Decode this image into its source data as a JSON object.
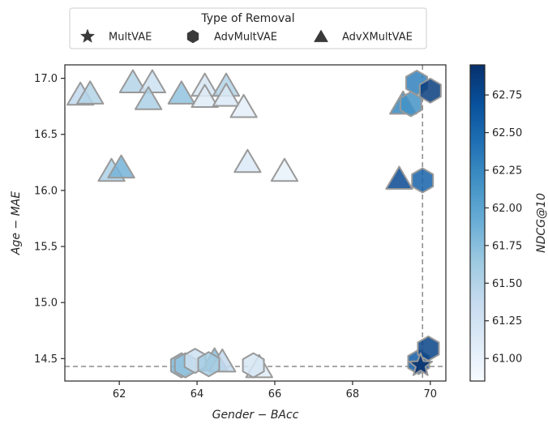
{
  "chart_data": {
    "type": "scatter",
    "xlabel": "Gender − BAcc",
    "ylabel": "Age − MAE",
    "xlim": [
      60.6,
      70.4
    ],
    "ylim": [
      14.3,
      17.12
    ],
    "xticks": [
      62,
      64,
      66,
      68,
      70
    ],
    "yticks": [
      14.5,
      15.0,
      15.5,
      16.0,
      16.5,
      17.0
    ],
    "xtick_labels": [
      "62",
      "64",
      "66",
      "68",
      "70"
    ],
    "ytick_labels": [
      "14.5",
      "15.0",
      "15.5",
      "16.0",
      "16.5",
      "17.0"
    ],
    "grid": false,
    "reference_lines": {
      "x": 69.8,
      "y": 14.43
    },
    "legend": {
      "title": "Type of Removal",
      "placement": "top-center-outside",
      "entries": [
        {
          "label": "MultVAE",
          "marker": "star"
        },
        {
          "label": "AdvMultVAE",
          "marker": "hexagon"
        },
        {
          "label": "AdvXMultVAE",
          "marker": "triangle"
        }
      ]
    },
    "colorbar": {
      "label": "NDCG@10",
      "min": 60.85,
      "max": 62.95,
      "ticks": [
        61.0,
        61.25,
        61.5,
        61.75,
        62.0,
        62.25,
        62.5,
        62.75
      ],
      "tick_labels": [
        "61.00",
        "61.25",
        "61.50",
        "61.75",
        "62.00",
        "62.25",
        "62.50",
        "62.75"
      ],
      "colormap": [
        "#f7fbff",
        "#deebf7",
        "#c6dbef",
        "#9ecae1",
        "#6baed6",
        "#4292c6",
        "#2171b5",
        "#08519c",
        "#08306b"
      ]
    },
    "series": [
      {
        "name": "MultVAE",
        "marker": "star",
        "points": [
          {
            "x": 69.75,
            "y": 14.44,
            "c": 62.95
          }
        ]
      },
      {
        "name": "AdvMultVAE",
        "marker": "hexagon",
        "points": [
          {
            "x": 63.6,
            "y": 14.44,
            "c": 61.8
          },
          {
            "x": 63.7,
            "y": 14.44,
            "c": 61.7
          },
          {
            "x": 63.95,
            "y": 14.48,
            "c": 61.3
          },
          {
            "x": 64.3,
            "y": 14.45,
            "c": 61.6
          },
          {
            "x": 65.45,
            "y": 14.44,
            "c": 61.2
          },
          {
            "x": 69.7,
            "y": 14.47,
            "c": 62.6
          },
          {
            "x": 69.95,
            "y": 14.59,
            "c": 62.8
          },
          {
            "x": 69.65,
            "y": 16.96,
            "c": 62.3
          },
          {
            "x": 70.0,
            "y": 16.89,
            "c": 62.85
          },
          {
            "x": 69.5,
            "y": 16.77,
            "c": 62.15
          },
          {
            "x": 69.8,
            "y": 16.09,
            "c": 62.55
          }
        ]
      },
      {
        "name": "AdvXMultVAE",
        "marker": "triangle",
        "points": [
          {
            "x": 61.0,
            "y": 16.84,
            "c": 61.4
          },
          {
            "x": 61.25,
            "y": 16.85,
            "c": 61.5
          },
          {
            "x": 62.35,
            "y": 16.95,
            "c": 61.5
          },
          {
            "x": 62.85,
            "y": 16.95,
            "c": 61.3
          },
          {
            "x": 62.75,
            "y": 16.8,
            "c": 61.55
          },
          {
            "x": 63.6,
            "y": 16.85,
            "c": 61.7
          },
          {
            "x": 64.2,
            "y": 16.92,
            "c": 61.2
          },
          {
            "x": 64.2,
            "y": 16.82,
            "c": 61.1
          },
          {
            "x": 64.75,
            "y": 16.92,
            "c": 61.5
          },
          {
            "x": 64.75,
            "y": 16.83,
            "c": 61.15
          },
          {
            "x": 65.2,
            "y": 16.73,
            "c": 61.05
          },
          {
            "x": 61.8,
            "y": 16.16,
            "c": 61.55
          },
          {
            "x": 62.05,
            "y": 16.19,
            "c": 61.85
          },
          {
            "x": 65.3,
            "y": 16.24,
            "c": 61.15
          },
          {
            "x": 66.25,
            "y": 16.16,
            "c": 61.0
          },
          {
            "x": 64.45,
            "y": 14.47,
            "c": 61.75
          },
          {
            "x": 64.65,
            "y": 14.46,
            "c": 61.4
          },
          {
            "x": 65.6,
            "y": 14.41,
            "c": 61.1
          },
          {
            "x": 69.2,
            "y": 16.09,
            "c": 62.75
          },
          {
            "x": 69.3,
            "y": 16.76,
            "c": 62.25
          }
        ]
      }
    ]
  }
}
